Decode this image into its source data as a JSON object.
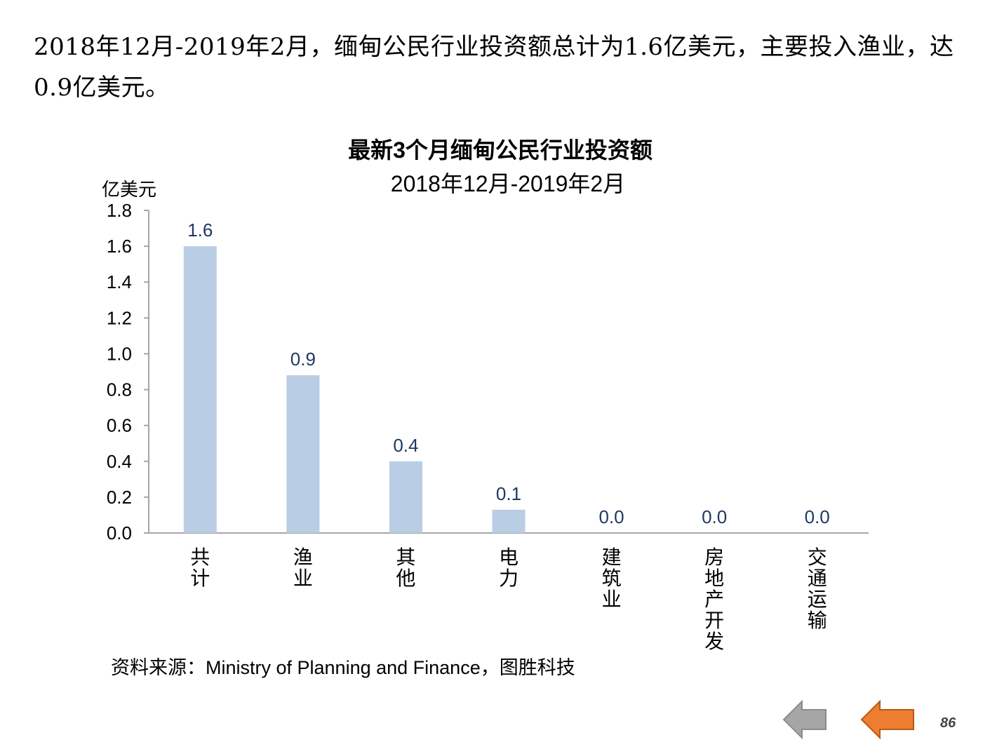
{
  "headline": "2018年12月-2019年2月，缅甸公民行业投资额总计为1.6亿美元，主要投入渔业，达0.9亿美元。",
  "chart_data": {
    "type": "bar",
    "title": "最新3个月缅甸公民行业投资额",
    "subtitle": "2018年12月-2019年2月",
    "ylabel": "亿美元",
    "xlabel": "",
    "ylim": [
      0,
      1.8
    ],
    "yticks": [
      "0.0",
      "0.2",
      "0.4",
      "0.6",
      "0.8",
      "1.0",
      "1.2",
      "1.4",
      "1.6",
      "1.8"
    ],
    "categories": [
      "共计",
      "渔业",
      "其他",
      "电力",
      "建筑业",
      "房地产开发",
      "交通运输"
    ],
    "values": [
      1.6,
      0.88,
      0.4,
      0.13,
      0.0,
      0.0,
      0.0
    ],
    "data_labels": [
      "1.6",
      "0.9",
      "0.4",
      "0.1",
      "0.0",
      "0.0",
      "0.0"
    ],
    "bar_color": "#b9cde5",
    "label_color": "#1f3864",
    "grid": false,
    "legend": "none"
  },
  "source": "资料来源：Ministry of Planning and Finance，图胜科技",
  "nav": {
    "prev_icon": "left-arrow-icon",
    "next_icon": "left-arrow-icon",
    "prev_color": "#a6a6a6",
    "next_color": "#ed7d31"
  },
  "page_number": "86"
}
